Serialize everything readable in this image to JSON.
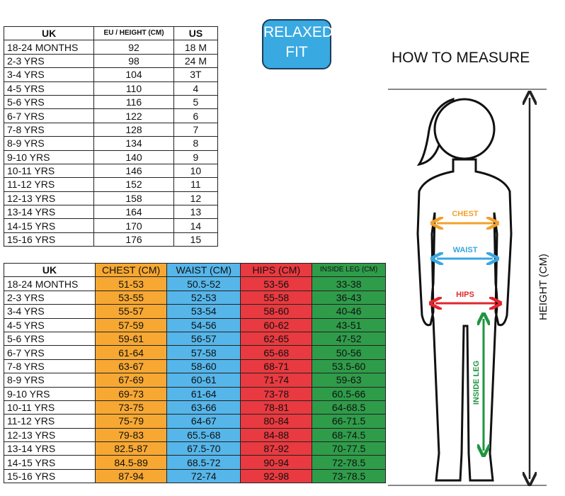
{
  "sizes_table": {
    "headers": [
      "UK",
      "EU / HEIGHT (CM)",
      "US"
    ],
    "rows": [
      [
        "18-24 MONTHS",
        "92",
        "18 M"
      ],
      [
        "2-3 YRS",
        "98",
        "24 M"
      ],
      [
        "3-4 YRS",
        "104",
        "3T"
      ],
      [
        "4-5 YRS",
        "110",
        "4"
      ],
      [
        "5-6 YRS",
        "116",
        "5"
      ],
      [
        "6-7 YRS",
        "122",
        "6"
      ],
      [
        "7-8 YRS",
        "128",
        "7"
      ],
      [
        "8-9 YRS",
        "134",
        "8"
      ],
      [
        "9-10 YRS",
        "140",
        "9"
      ],
      [
        "10-11 YRS",
        "146",
        "10"
      ],
      [
        "11-12 YRS",
        "152",
        "11"
      ],
      [
        "12-13 YRS",
        "158",
        "12"
      ],
      [
        "13-14 YRS",
        "164",
        "13"
      ],
      [
        "14-15 YRS",
        "170",
        "14"
      ],
      [
        "15-16 YRS",
        "176",
        "15"
      ]
    ]
  },
  "badge": {
    "line1": "RELAXED",
    "line2": "FIT"
  },
  "measure": {
    "title": "HOW TO MEASURE",
    "chest": "CHEST",
    "waist": "WAIST",
    "hips": "HIPS",
    "inside_leg": "INSIDE LEG",
    "height": "HEIGHT (CM)"
  },
  "measurements_table": {
    "headers": [
      "UK",
      "CHEST (CM)",
      "WAIST (CM)",
      "HIPS (CM)",
      "INSIDE LEG (CM)"
    ],
    "rows": [
      [
        "18-24 MONTHS",
        "51-53",
        "50.5-52",
        "53-56",
        "33-38"
      ],
      [
        "2-3 YRS",
        "53-55",
        "52-53",
        "55-58",
        "36-43"
      ],
      [
        "3-4 YRS",
        "55-57",
        "53-54",
        "58-60",
        "40-46"
      ],
      [
        "4-5 YRS",
        "57-59",
        "54-56",
        "60-62",
        "43-51"
      ],
      [
        "5-6 YRS",
        "59-61",
        "56-57",
        "62-65",
        "47-52"
      ],
      [
        "6-7 YRS",
        "61-64",
        "57-58",
        "65-68",
        "50-56"
      ],
      [
        "7-8 YRS",
        "63-67",
        "58-60",
        "68-71",
        "53.5-60"
      ],
      [
        "8-9 YRS",
        "67-69",
        "60-61",
        "71-74",
        "59-63"
      ],
      [
        "9-10 YRS",
        "69-73",
        "61-64",
        "73-78",
        "60.5-66"
      ],
      [
        "10-11 YRS",
        "73-75",
        "63-66",
        "78-81",
        "64-68.5"
      ],
      [
        "11-12 YRS",
        "75-79",
        "64-67",
        "80-84",
        "66-71.5"
      ],
      [
        "12-13 YRS",
        "79-83",
        "65.5-68",
        "84-88",
        "68-74.5"
      ],
      [
        "13-14 YRS",
        "82.5-87",
        "67.5-70",
        "87-92",
        "70-77.5"
      ],
      [
        "14-15 YRS",
        "84.5-89",
        "68.5-72",
        "90-94",
        "72-78.5"
      ],
      [
        "15-16 YRS",
        "87-94",
        "72-74",
        "92-98",
        "73-78.5"
      ]
    ]
  }
}
